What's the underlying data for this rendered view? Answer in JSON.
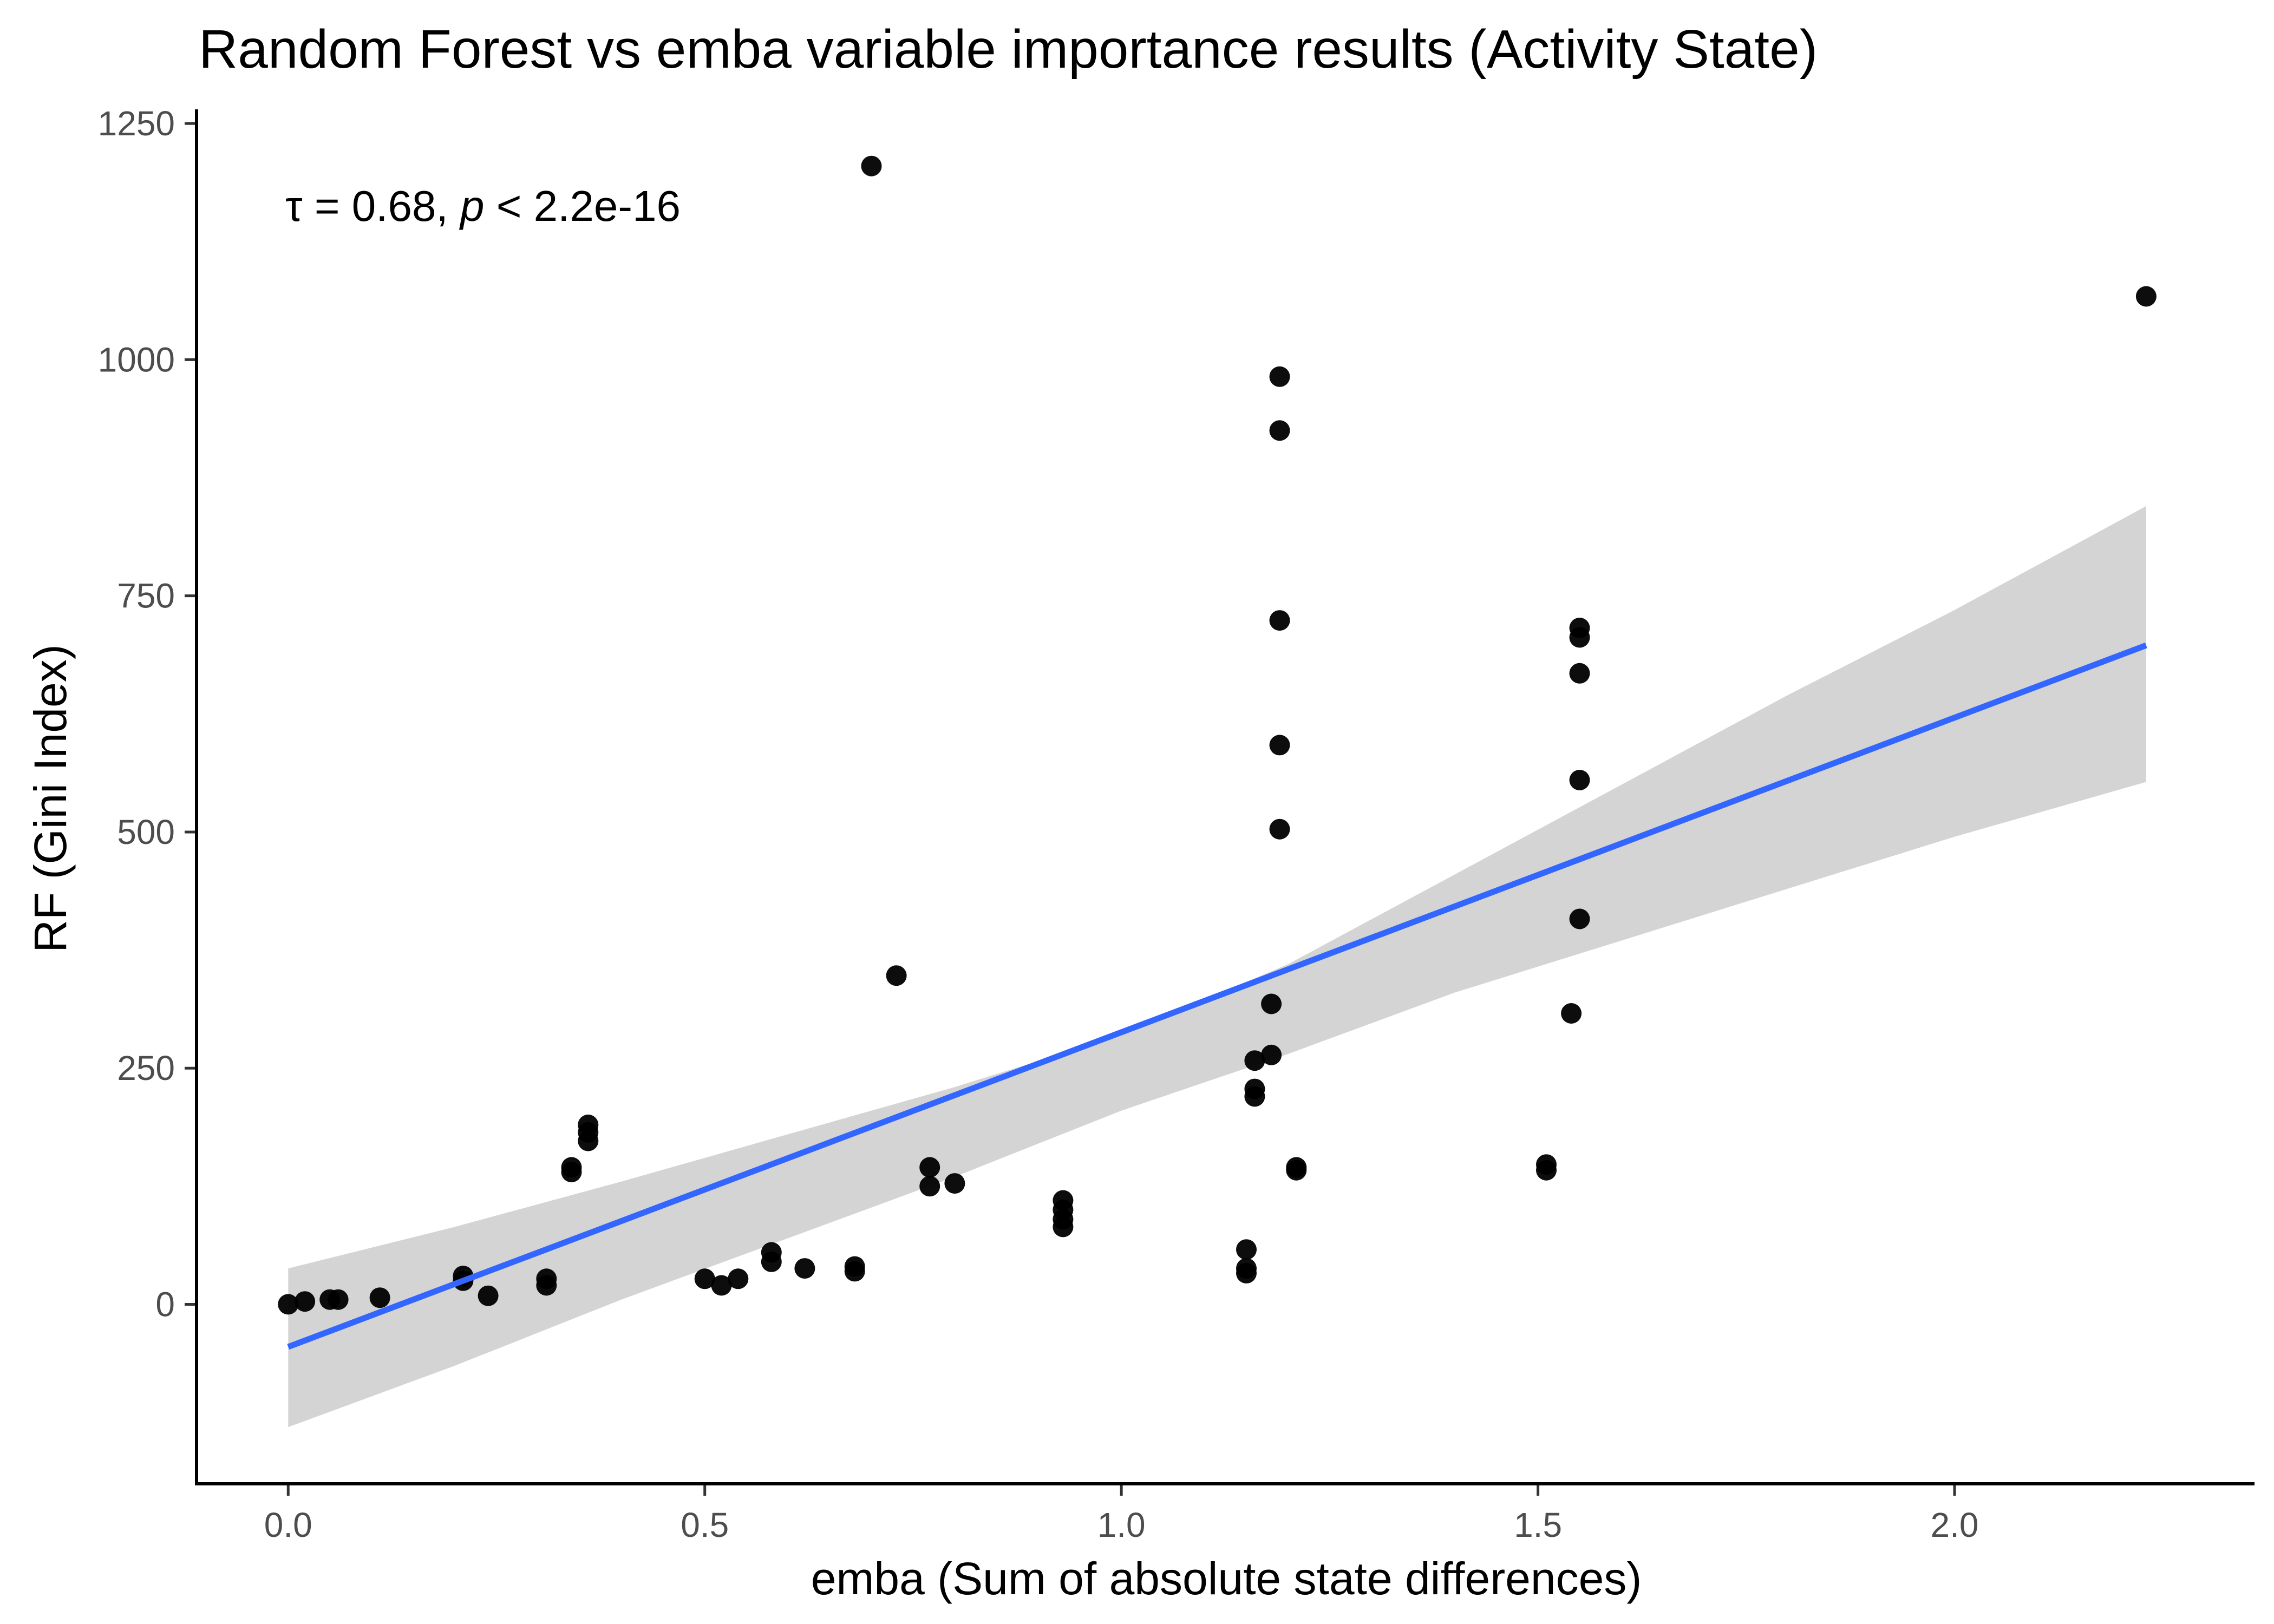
{
  "chart_data": {
    "type": "scatter",
    "title": "Random Forest vs emba variable importance results (Activity State)",
    "xlabel": "emba (Sum of absolute state differences)",
    "ylabel": "RF (Gini Index)",
    "xlim": [
      -0.11,
      2.36
    ],
    "ylim": [
      -190,
      1265
    ],
    "x_ticks": [
      0.0,
      0.5,
      1.0,
      1.5,
      2.0
    ],
    "x_tick_labels": [
      "0.0",
      "0.5",
      "1.0",
      "1.5",
      "2.0"
    ],
    "y_ticks": [
      0,
      250,
      500,
      750,
      1000,
      1250
    ],
    "y_tick_labels": [
      "0",
      "250",
      "500",
      "750",
      "1000",
      "1250"
    ],
    "grid": false,
    "annotation": {
      "tau_symbol": "τ",
      "equals": "=",
      "tau_value": "0.68,",
      "p_symbol": "p",
      "less_than": "<",
      "p_value": "2.2e-16"
    },
    "points": [
      {
        "x": 0.0,
        "y": 0
      },
      {
        "x": 0.02,
        "y": 3
      },
      {
        "x": 0.05,
        "y": 5
      },
      {
        "x": 0.06,
        "y": 5
      },
      {
        "x": 0.11,
        "y": 7
      },
      {
        "x": 0.21,
        "y": 30
      },
      {
        "x": 0.21,
        "y": 25
      },
      {
        "x": 0.24,
        "y": 9
      },
      {
        "x": 0.31,
        "y": 27
      },
      {
        "x": 0.31,
        "y": 20
      },
      {
        "x": 0.34,
        "y": 145
      },
      {
        "x": 0.34,
        "y": 140
      },
      {
        "x": 0.36,
        "y": 190
      },
      {
        "x": 0.36,
        "y": 182
      },
      {
        "x": 0.36,
        "y": 173
      },
      {
        "x": 0.5,
        "y": 27
      },
      {
        "x": 0.52,
        "y": 20
      },
      {
        "x": 0.54,
        "y": 27
      },
      {
        "x": 0.58,
        "y": 55
      },
      {
        "x": 0.58,
        "y": 45
      },
      {
        "x": 0.62,
        "y": 38
      },
      {
        "x": 0.68,
        "y": 40
      },
      {
        "x": 0.68,
        "y": 35
      },
      {
        "x": 0.7,
        "y": 1205
      },
      {
        "x": 0.73,
        "y": 348
      },
      {
        "x": 0.77,
        "y": 145
      },
      {
        "x": 0.77,
        "y": 125
      },
      {
        "x": 0.8,
        "y": 128
      },
      {
        "x": 0.93,
        "y": 110
      },
      {
        "x": 0.93,
        "y": 100
      },
      {
        "x": 0.93,
        "y": 90
      },
      {
        "x": 0.93,
        "y": 82
      },
      {
        "x": 1.15,
        "y": 58
      },
      {
        "x": 1.15,
        "y": 38
      },
      {
        "x": 1.15,
        "y": 33
      },
      {
        "x": 1.16,
        "y": 258
      },
      {
        "x": 1.16,
        "y": 228
      },
      {
        "x": 1.16,
        "y": 220
      },
      {
        "x": 1.18,
        "y": 318
      },
      {
        "x": 1.18,
        "y": 264
      },
      {
        "x": 1.19,
        "y": 982
      },
      {
        "x": 1.19,
        "y": 925
      },
      {
        "x": 1.19,
        "y": 724
      },
      {
        "x": 1.19,
        "y": 592
      },
      {
        "x": 1.19,
        "y": 503
      },
      {
        "x": 1.21,
        "y": 145
      },
      {
        "x": 1.21,
        "y": 142
      },
      {
        "x": 1.51,
        "y": 148
      },
      {
        "x": 1.51,
        "y": 142
      },
      {
        "x": 1.54,
        "y": 308
      },
      {
        "x": 1.55,
        "y": 716
      },
      {
        "x": 1.55,
        "y": 706
      },
      {
        "x": 1.55,
        "y": 668
      },
      {
        "x": 1.55,
        "y": 555
      },
      {
        "x": 1.55,
        "y": 408
      },
      {
        "x": 2.23,
        "y": 1067
      }
    ],
    "regression": {
      "x_range": [
        0.0,
        2.23
      ],
      "intercept": -45,
      "slope": 333,
      "ci_lower": [
        {
          "x": 0.0,
          "y": -130
        },
        {
          "x": 0.2,
          "y": -65
        },
        {
          "x": 0.4,
          "y": 5
        },
        {
          "x": 0.6,
          "y": 70
        },
        {
          "x": 0.8,
          "y": 135
        },
        {
          "x": 1.0,
          "y": 205
        },
        {
          "x": 1.2,
          "y": 265
        },
        {
          "x": 1.4,
          "y": 330
        },
        {
          "x": 1.6,
          "y": 385
        },
        {
          "x": 1.8,
          "y": 440
        },
        {
          "x": 2.0,
          "y": 495
        },
        {
          "x": 2.23,
          "y": 553
        }
      ],
      "ci_upper": [
        {
          "x": 0.0,
          "y": 38
        },
        {
          "x": 0.2,
          "y": 82
        },
        {
          "x": 0.4,
          "y": 130
        },
        {
          "x": 0.6,
          "y": 180
        },
        {
          "x": 0.8,
          "y": 230
        },
        {
          "x": 1.0,
          "y": 285
        },
        {
          "x": 1.2,
          "y": 360
        },
        {
          "x": 1.4,
          "y": 455
        },
        {
          "x": 1.6,
          "y": 550
        },
        {
          "x": 1.8,
          "y": 645
        },
        {
          "x": 2.0,
          "y": 735
        },
        {
          "x": 2.23,
          "y": 845
        }
      ],
      "line_color": "#3366ff",
      "band_color": "#d4d4d4"
    },
    "point_color": "#000000"
  }
}
